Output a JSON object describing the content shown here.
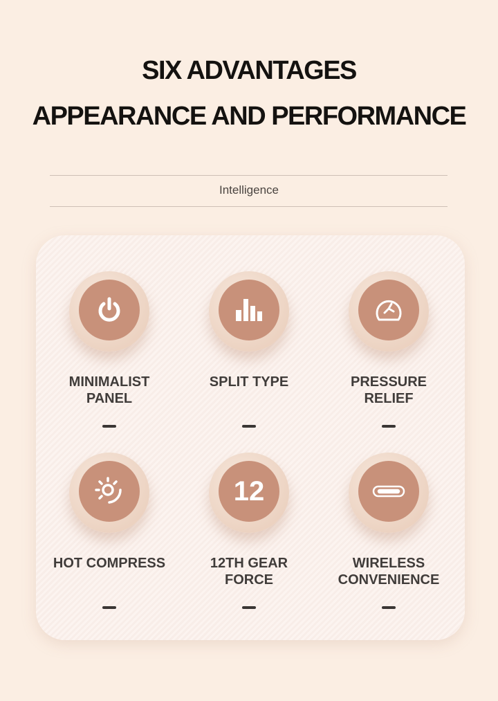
{
  "header": {
    "line1": "SIX ADVANTAGES",
    "line2": "APPEARANCE AND PERFORMANCE",
    "subtitle": "Intelligence"
  },
  "colors": {
    "background": "#fbeee3",
    "icon_fill": "#c8917a",
    "text": "#403c3a"
  },
  "features": [
    {
      "icon": "power-icon",
      "line1": "MINIMALIST",
      "line2": "PANEL"
    },
    {
      "icon": "bar-chart-icon",
      "line1": "SPLIT TYPE",
      "line2": ""
    },
    {
      "icon": "pressure-gauge-icon",
      "line1": "PRESSURE",
      "line2": "RELIEF"
    },
    {
      "icon": "sun-heat-icon",
      "line1": "HOT COMPRESS",
      "line2": ""
    },
    {
      "icon": "number-12-icon",
      "text": "12",
      "line1": "12TH GEAR",
      "line2": "FORCE"
    },
    {
      "icon": "usb-c-icon",
      "line1": "WIRELESS",
      "line2": "CONVENIENCE"
    }
  ]
}
